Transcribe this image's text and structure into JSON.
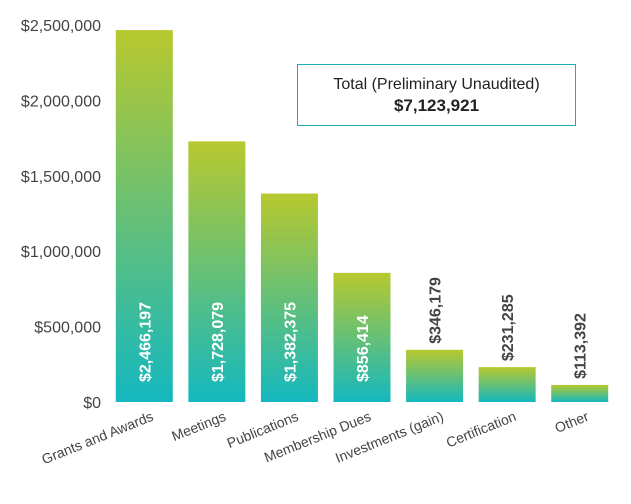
{
  "chart_data": {
    "type": "bar",
    "categories": [
      "Grants and Awards",
      "Meetings",
      "Publications",
      "Membership Dues",
      "Investments (gain)",
      "Certification",
      "Other"
    ],
    "values": [
      2466197,
      1728079,
      1382375,
      856414,
      346179,
      231285,
      113392
    ],
    "value_labels": [
      "$2,466,197",
      "$1,728,079",
      "$1,382,375",
      "$856,414",
      "$346,179",
      "$231,285",
      "$113,392"
    ],
    "label_inside": [
      true,
      true,
      true,
      true,
      false,
      false,
      false
    ],
    "ylim": [
      0,
      2500000
    ],
    "yticks": [
      0,
      500000,
      1000000,
      1500000,
      2000000,
      2500000
    ],
    "ytick_labels": [
      "$0",
      "$500,000",
      "$1,000,000",
      "$1,500,000",
      "$2,000,000",
      "$2,500,000"
    ],
    "grid": false,
    "colors": {
      "bar_top": "#b8c82e",
      "bar_bottom": "#14b8bf",
      "axis": "#444444",
      "text": "#444444"
    },
    "annotation": {
      "label": "Total (Preliminary Unaudited)",
      "value": "$7,123,921",
      "border_color": "#1ab0b3"
    }
  }
}
